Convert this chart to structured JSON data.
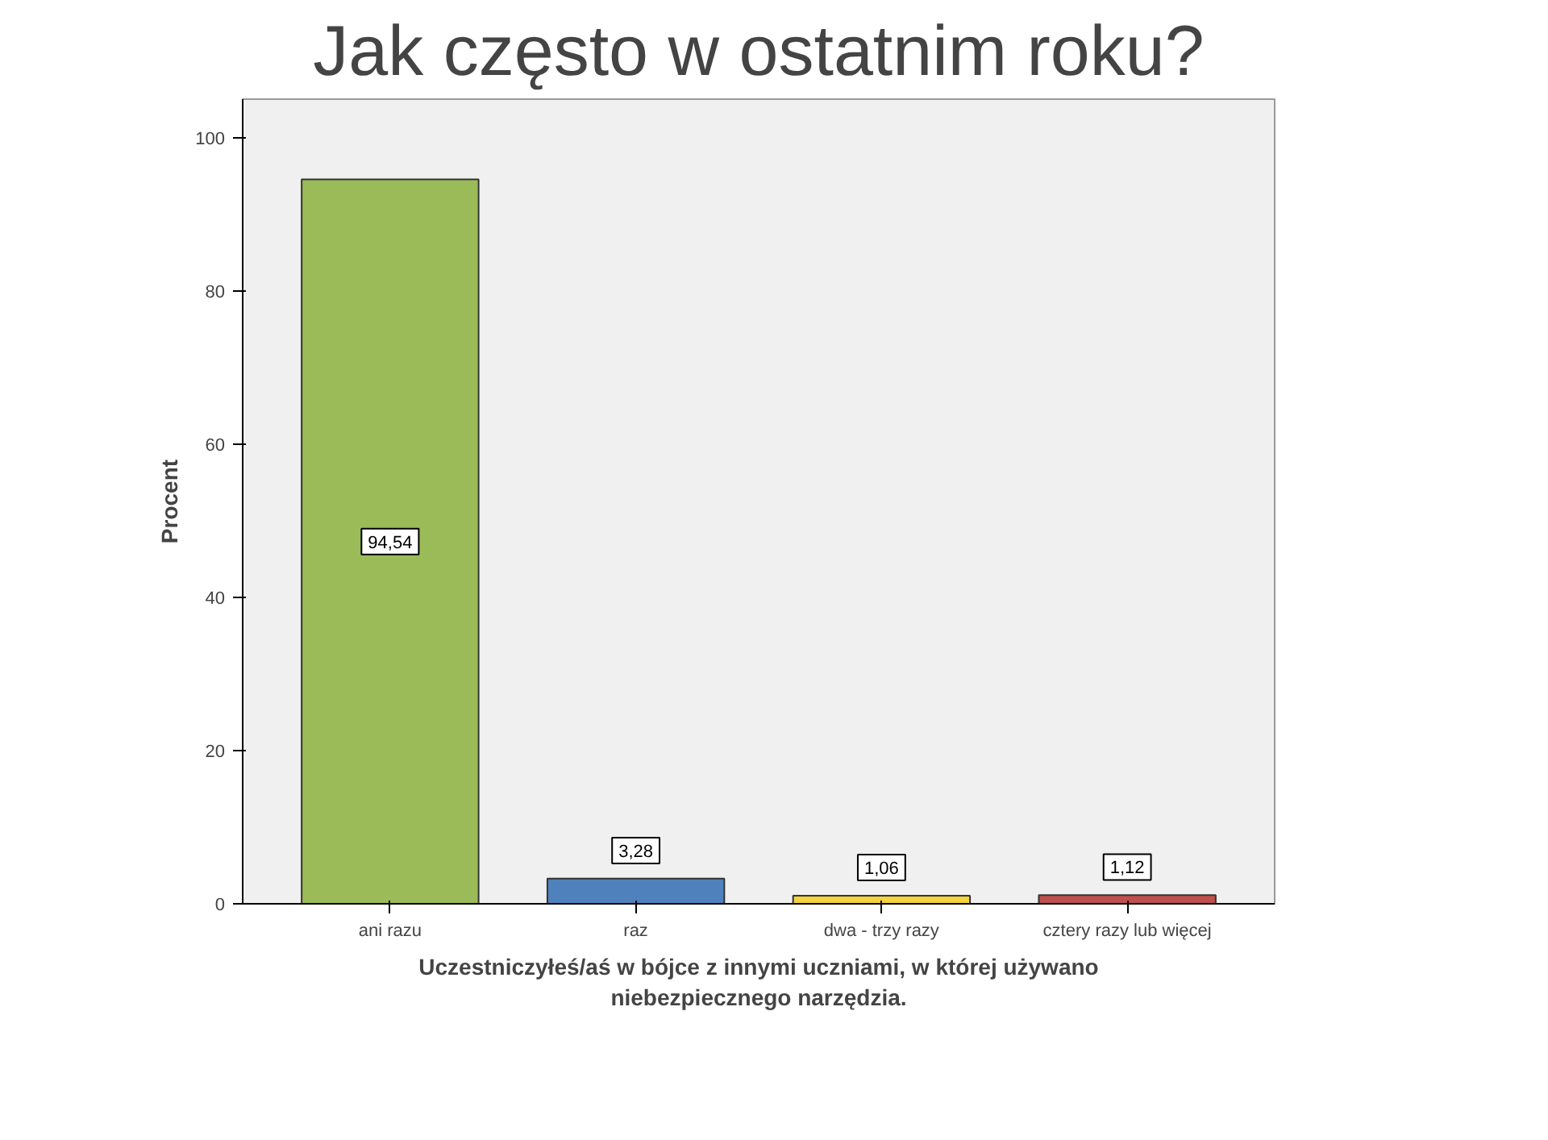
{
  "chart_data": {
    "type": "bar",
    "title": "Jak często w ostatnim roku?",
    "ylabel": "Procent",
    "xlabel": "Uczestniczyłeś/aś w bójce z innymi uczniami, w której używano niebezpiecznego narzędzia.",
    "categories": [
      "ani razu",
      "raz",
      "dwa - trzy razy",
      "cztery razy lub więcej"
    ],
    "values": [
      94.54,
      3.28,
      1.06,
      1.12
    ],
    "colors": [
      "#9bbb59",
      "#4f81bd",
      "#f5d33c",
      "#c0504d"
    ],
    "value_labels": [
      "94,54",
      "3,28",
      "1,06",
      "1,12"
    ],
    "ylim": [
      0,
      105
    ],
    "yticks": [
      0,
      20,
      40,
      60,
      80,
      100
    ],
    "grid": false
  }
}
